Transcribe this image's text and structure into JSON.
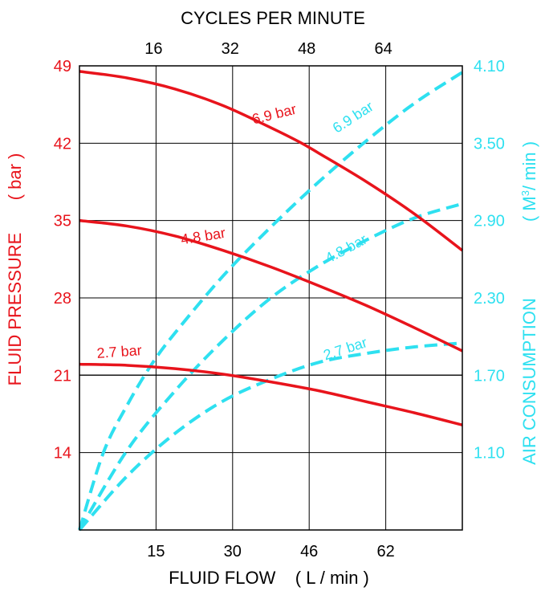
{
  "colors": {
    "pressure": "#e8141c",
    "air": "#2ee0f0",
    "grid": "#000000"
  },
  "chart_data": {
    "type": "line",
    "top_axis": {
      "title": "CYCLES PER MINUTE",
      "ticks": [
        "16",
        "32",
        "48",
        "64"
      ]
    },
    "x_axis": {
      "title": "FLUID FLOW    ( L / min )",
      "ticks": [
        "15",
        "30",
        "46",
        "62"
      ],
      "range": [
        0,
        80
      ]
    },
    "y_left": {
      "title": "FLUID PRESSURE",
      "unit": "( bar )",
      "ticks": [
        "49",
        "42",
        "35",
        "28",
        "21",
        "14"
      ],
      "range": [
        7,
        49
      ]
    },
    "y_right": {
      "title": "AIR CONSUMPTION",
      "unit_prefix": "( M",
      "unit_sup": "3",
      "unit_suffix": "/ min )",
      "ticks": [
        "4.10",
        "3.50",
        "2.90",
        "2.30",
        "1.70",
        "1.10"
      ],
      "range": [
        0.5,
        4.1
      ]
    },
    "pressure_series": [
      {
        "name": "6.9 bar",
        "x": [
          0,
          10,
          20,
          30,
          40,
          46,
          50,
          60,
          70,
          80
        ],
        "y": [
          48.5,
          47.9,
          46.9,
          45.4,
          43.4,
          42.1,
          41.1,
          38.5,
          35.6,
          32.3
        ]
      },
      {
        "name": "4.8 bar",
        "x": [
          0,
          10,
          20,
          30,
          40,
          50,
          60,
          70,
          80
        ],
        "y": [
          35.0,
          34.5,
          33.6,
          32.3,
          30.8,
          29.1,
          27.3,
          25.3,
          23.2
        ]
      },
      {
        "name": "2.7 bar",
        "x": [
          0,
          10,
          20,
          30,
          40,
          50,
          60,
          70,
          80
        ],
        "y": [
          22.0,
          21.9,
          21.6,
          21.1,
          20.4,
          19.6,
          18.6,
          17.6,
          16.5
        ]
      }
    ],
    "air_series": [
      {
        "name": "6.9 bar",
        "x": [
          0,
          5,
          10,
          15,
          20,
          30,
          40,
          50,
          60,
          70,
          80
        ],
        "y": [
          0.5,
          1.1,
          1.47,
          1.78,
          2.03,
          2.47,
          2.85,
          3.2,
          3.52,
          3.81,
          4.05
        ]
      },
      {
        "name": "4.8 bar",
        "x": [
          0,
          10,
          20,
          30,
          40,
          50,
          60,
          70,
          80
        ],
        "y": [
          0.5,
          1.12,
          1.58,
          1.97,
          2.3,
          2.55,
          2.75,
          2.92,
          3.03
        ]
      },
      {
        "name": "2.7 bar",
        "x": [
          0,
          10,
          20,
          30,
          40,
          50,
          60,
          70,
          80
        ],
        "y": [
          0.5,
          0.92,
          1.25,
          1.5,
          1.67,
          1.8,
          1.87,
          1.92,
          1.95
        ]
      }
    ]
  }
}
